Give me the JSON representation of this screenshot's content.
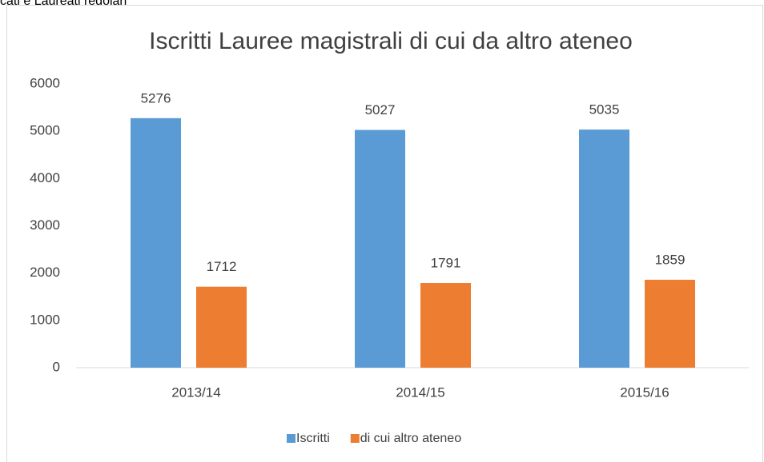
{
  "header_text": "cati e Laureati regolari",
  "chart_data": {
    "type": "bar",
    "title": "Iscritti Lauree magistrali di cui da altro ateneo",
    "categories": [
      "2013/14",
      "2014/15",
      "2015/16"
    ],
    "series": [
      {
        "name": "Iscritti",
        "color": "#5b9bd5",
        "values": [
          5276,
          5027,
          5035
        ]
      },
      {
        "name": "di cui altro ateneo",
        "color": "#ed7d31",
        "values": [
          1712,
          1791,
          1859
        ]
      }
    ],
    "ylim": [
      0,
      6000
    ],
    "yticks": [
      0,
      1000,
      2000,
      3000,
      4000,
      5000,
      6000
    ],
    "grid": false,
    "legend": "bottom"
  }
}
